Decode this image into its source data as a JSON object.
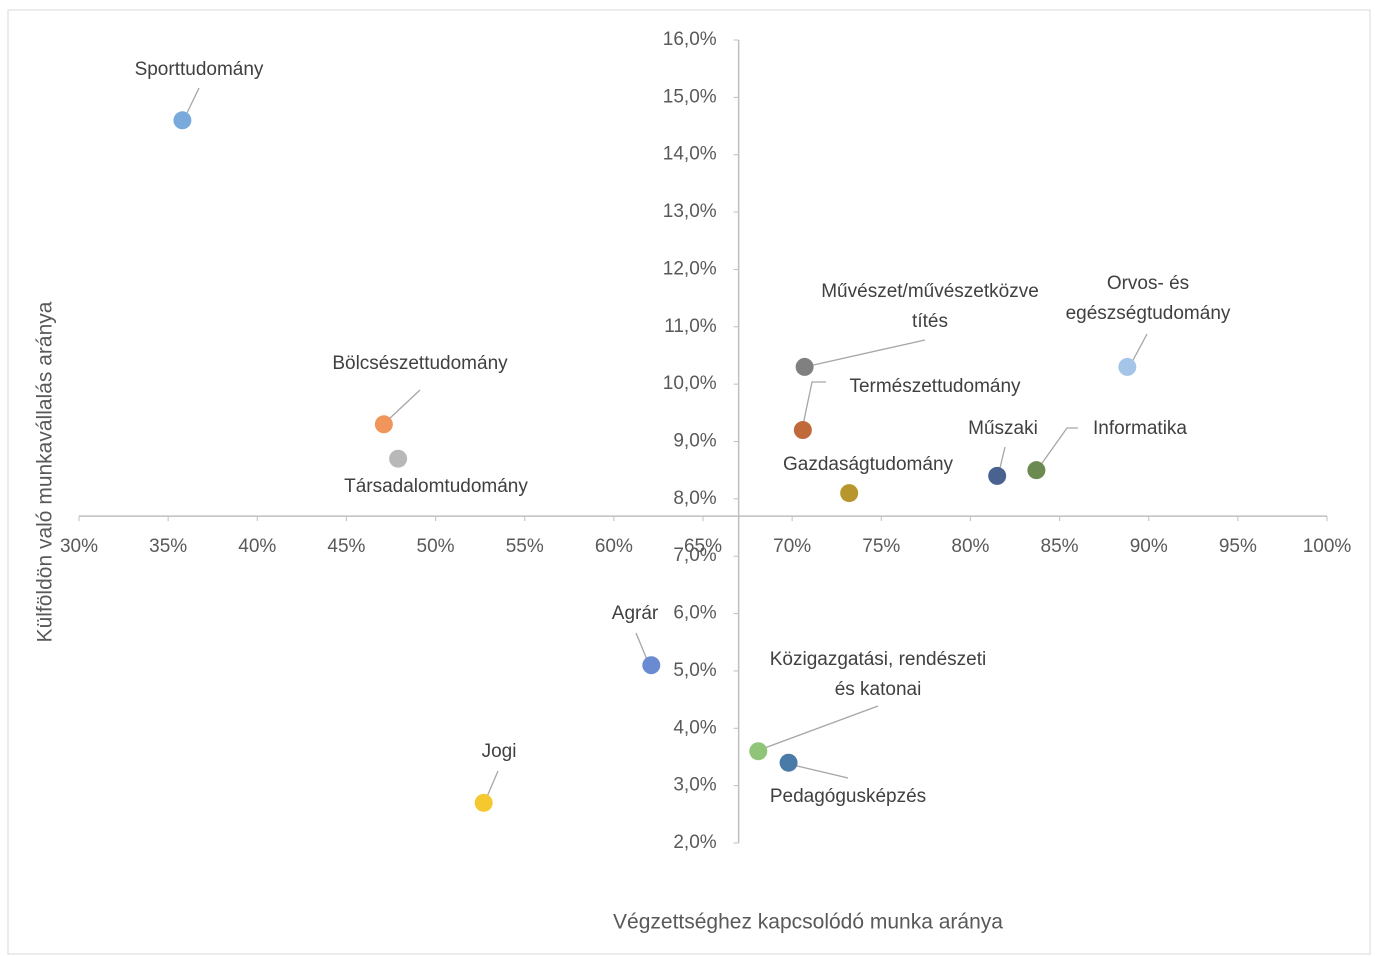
{
  "chart_data": {
    "type": "scatter",
    "xlabel": "Végzettséghez kapcsolódó munka aránya",
    "ylabel": "Külföldön való munkavállalás aránya",
    "xlim": [
      30,
      100
    ],
    "ylim": [
      2,
      16
    ],
    "x_cross": 67,
    "y_cross": 7.7,
    "grid": false,
    "xticks": [
      {
        "value": 30,
        "label": "30%"
      },
      {
        "value": 35,
        "label": "35%"
      },
      {
        "value": 40,
        "label": "40%"
      },
      {
        "value": 45,
        "label": "45%"
      },
      {
        "value": 50,
        "label": "50%"
      },
      {
        "value": 55,
        "label": "55%"
      },
      {
        "value": 60,
        "label": "60%"
      },
      {
        "value": 65,
        "label": "65%"
      },
      {
        "value": 70,
        "label": "70%"
      },
      {
        "value": 75,
        "label": "75%"
      },
      {
        "value": 80,
        "label": "80%"
      },
      {
        "value": 85,
        "label": "85%"
      },
      {
        "value": 90,
        "label": "90%"
      },
      {
        "value": 95,
        "label": "95%"
      },
      {
        "value": 100,
        "label": "100%"
      }
    ],
    "yticks": [
      {
        "value": 2,
        "label": "2,0%"
      },
      {
        "value": 3,
        "label": "3,0%"
      },
      {
        "value": 4,
        "label": "4,0%"
      },
      {
        "value": 5,
        "label": "5,0%"
      },
      {
        "value": 6,
        "label": "6,0%"
      },
      {
        "value": 7,
        "label": "7,0%"
      },
      {
        "value": 8,
        "label": "8,0%"
      },
      {
        "value": 9,
        "label": "9,0%"
      },
      {
        "value": 10,
        "label": "10,0%"
      },
      {
        "value": 11,
        "label": "11,0%"
      },
      {
        "value": 12,
        "label": "12,0%"
      },
      {
        "value": 13,
        "label": "13,0%"
      },
      {
        "value": 14,
        "label": "14,0%"
      },
      {
        "value": 15,
        "label": "15,0%"
      },
      {
        "value": 16,
        "label": "16,0%"
      }
    ],
    "points": [
      {
        "label": [
          "Sporttudomány"
        ],
        "x": 35.8,
        "y": 14.6,
        "color": "#7aaadc"
      },
      {
        "label": [
          "Bölcsészettudomány"
        ],
        "x": 47.1,
        "y": 9.3,
        "color": "#f0965a"
      },
      {
        "label": [
          "Társadalomtudomány"
        ],
        "x": 47.9,
        "y": 8.7,
        "color": "#b8b8b8"
      },
      {
        "label": [
          "Művészet/művészetközve",
          "títés"
        ],
        "x": 70.7,
        "y": 10.3,
        "color": "#808080"
      },
      {
        "label": [
          "Természettudomány"
        ],
        "x": 70.6,
        "y": 9.2,
        "color": "#c0693a"
      },
      {
        "label": [
          "Orvos- és",
          "egészségtudomány"
        ],
        "x": 88.8,
        "y": 10.3,
        "color": "#a5c5e8"
      },
      {
        "label": [
          "Műszaki"
        ],
        "x": 81.5,
        "y": 8.4,
        "color": "#4a6290"
      },
      {
        "label": [
          "Informatika"
        ],
        "x": 83.7,
        "y": 8.5,
        "color": "#6a8a52"
      },
      {
        "label": [
          "Gazdaságtudomány"
        ],
        "x": 73.2,
        "y": 8.1,
        "color": "#b8962e"
      },
      {
        "label": [
          "Agrár"
        ],
        "x": 62.1,
        "y": 5.1,
        "color": "#6a8ad2"
      },
      {
        "label": [
          "Közigazgatási, rendészeti",
          "és katonai"
        ],
        "x": 68.1,
        "y": 3.6,
        "color": "#90c478"
      },
      {
        "label": [
          "Pedagógusképzés"
        ],
        "x": 69.8,
        "y": 3.4,
        "color": "#4a7aa8"
      },
      {
        "label": [
          "Jogi"
        ],
        "x": 52.7,
        "y": 2.7,
        "color": "#f5c830"
      }
    ]
  }
}
